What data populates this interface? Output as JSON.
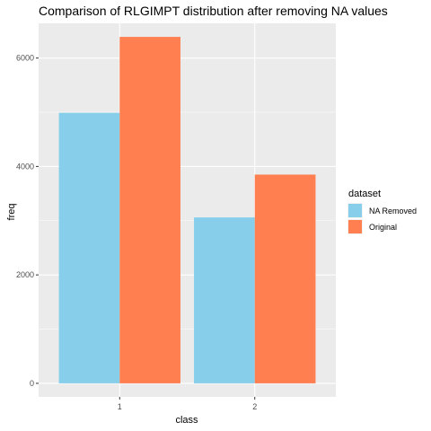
{
  "chart_data": {
    "type": "bar",
    "title": "Comparison of RLGIMPT distribution after removing NA values",
    "xlabel": "class",
    "ylabel": "freq",
    "categories": [
      "1",
      "2"
    ],
    "series": [
      {
        "name": "NA Removed",
        "values": [
          4990,
          3060
        ],
        "color": "#87CEEB"
      },
      {
        "name": "Original",
        "values": [
          6390,
          3850
        ],
        "color": "#FF7F50"
      }
    ],
    "ylim": [
      -250,
      6640
    ],
    "yticks": [
      0,
      2000,
      4000,
      6000
    ],
    "ytick_labels": [
      "0",
      "2000",
      "4000",
      "6000"
    ],
    "grid": true,
    "legend": {
      "title": "dataset",
      "position": "right"
    },
    "panel_color": "#EBEBEB"
  }
}
